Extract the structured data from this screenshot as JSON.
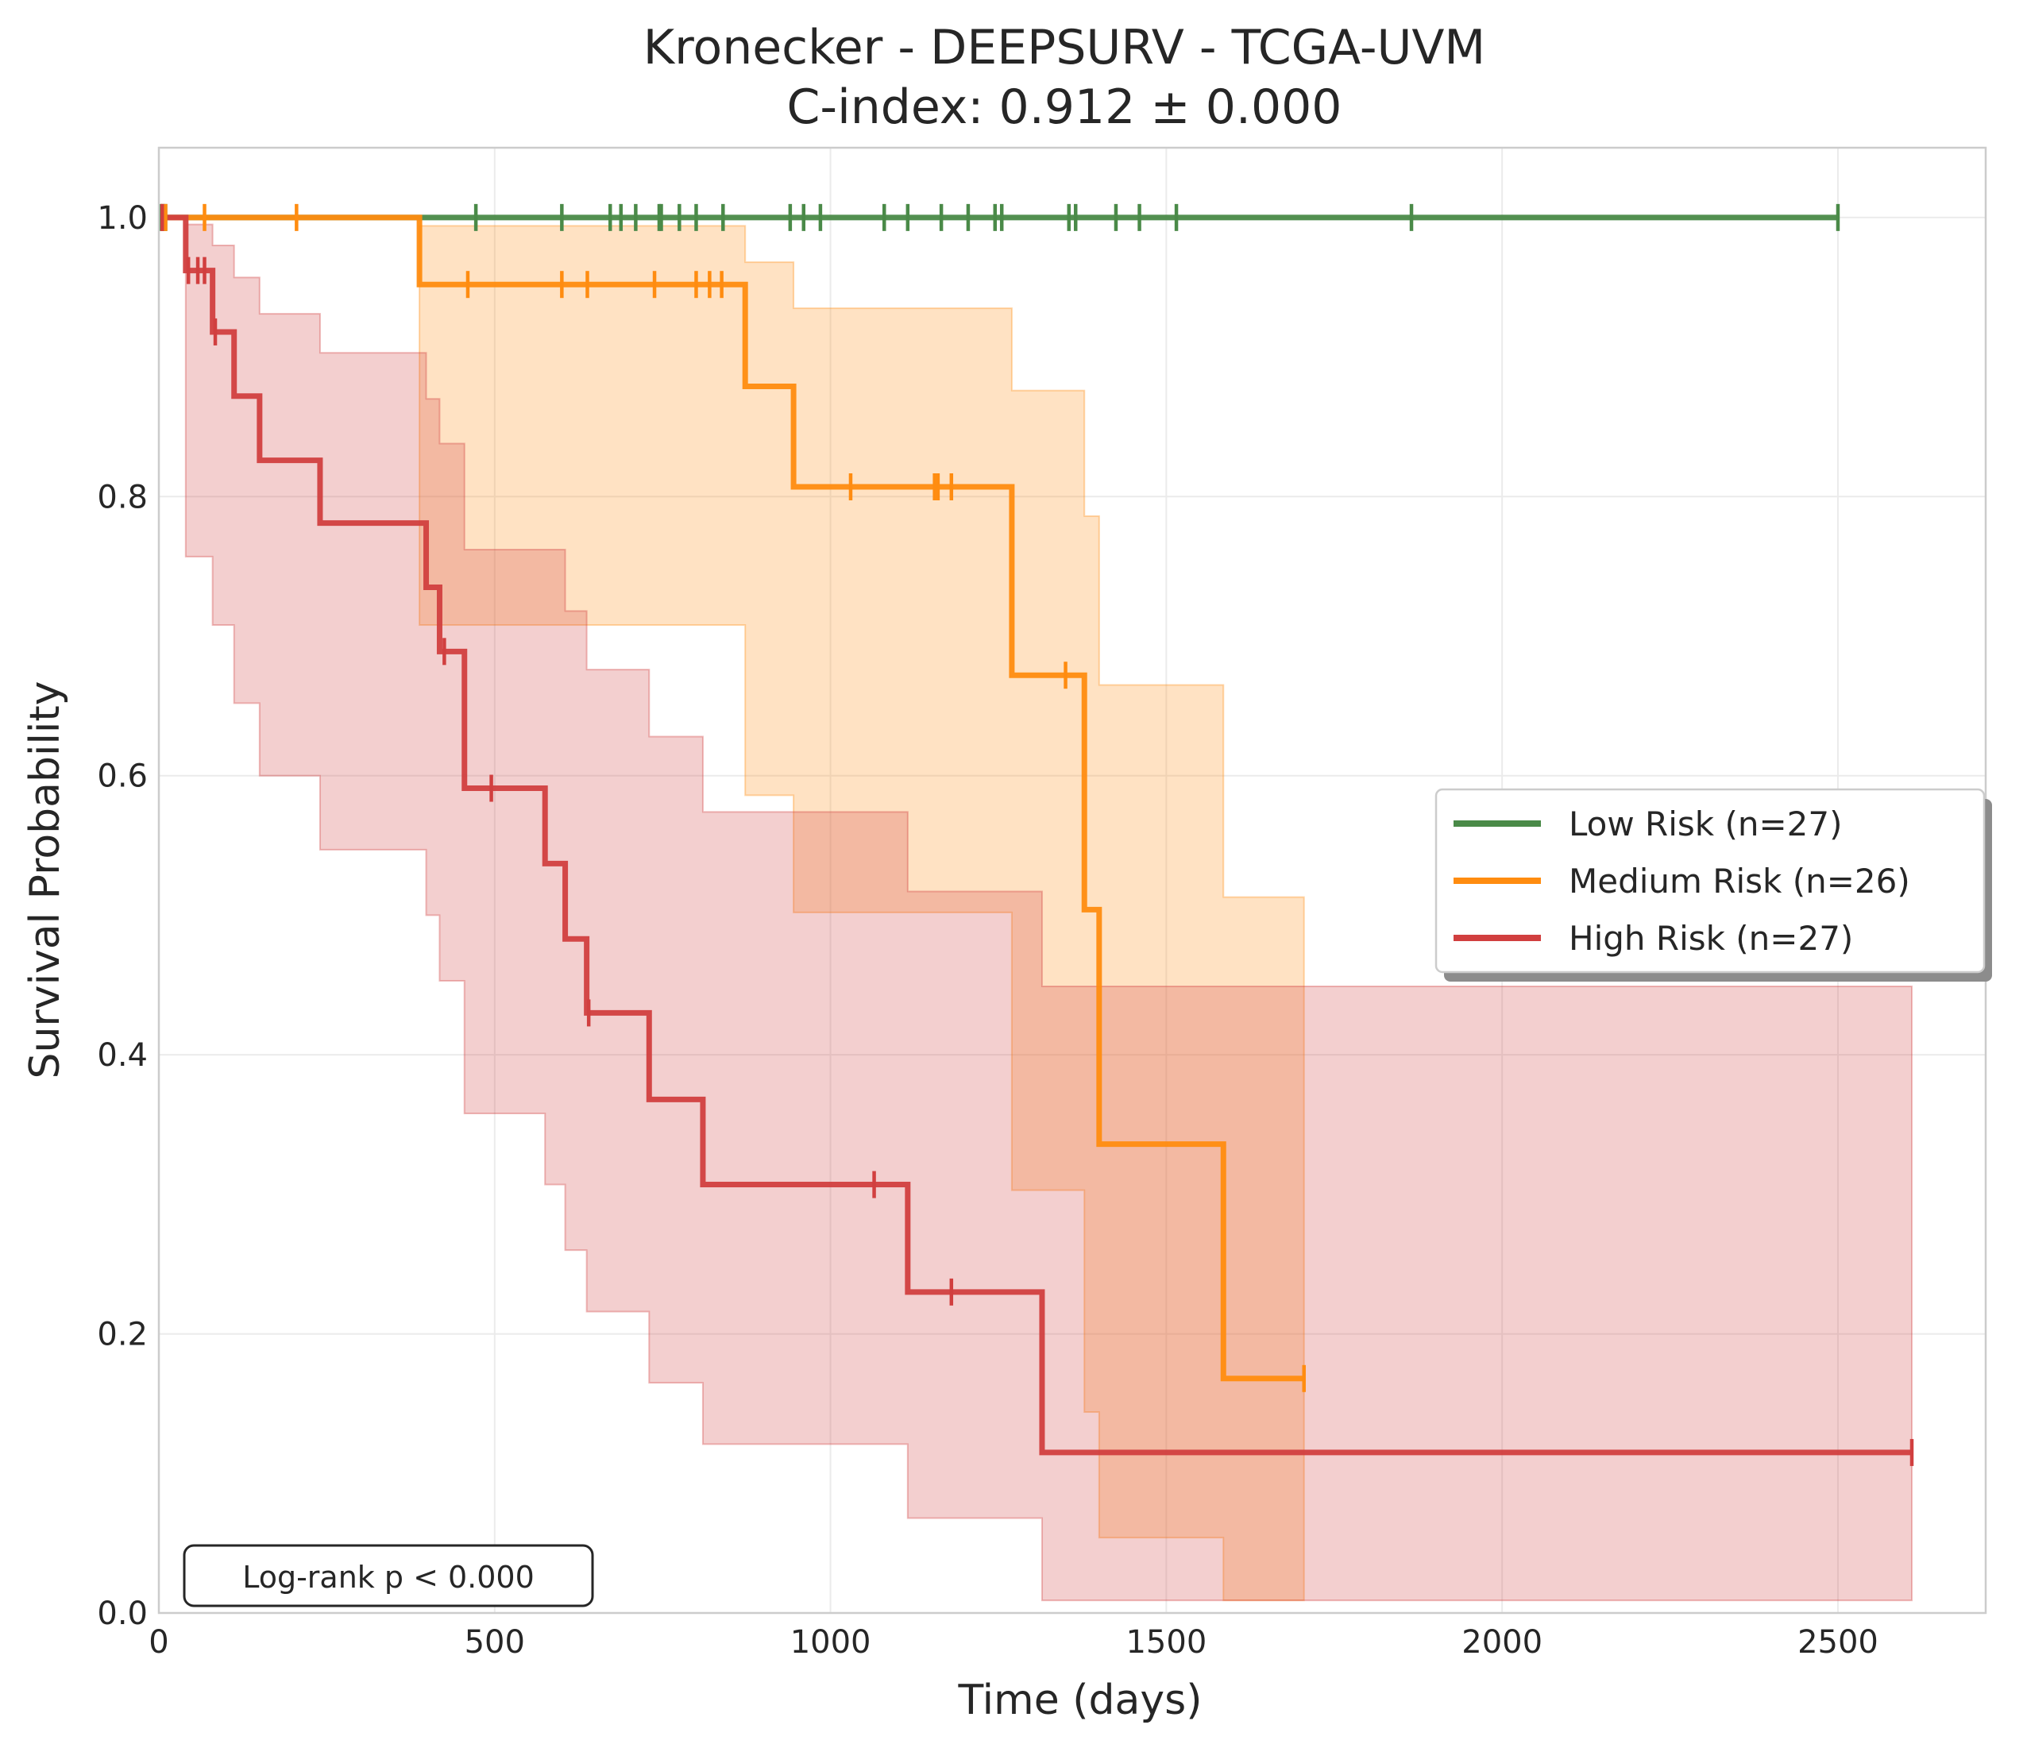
{
  "chart_data": {
    "type": "line",
    "title_line1": "Kronecker - DEEPSURV - TCGA-UVM",
    "title_line2": "C-index: 0.912 ± 0.000",
    "xlabel": "Time (days)",
    "ylabel": "Survival Probability",
    "xlim": [
      0,
      2720
    ],
    "ylim": [
      0,
      1.05
    ],
    "x_ticks": [
      0,
      500,
      1000,
      1500,
      2000,
      2500
    ],
    "x_tick_labels": [
      "0",
      "500",
      "1000",
      "1500",
      "2000",
      "2500"
    ],
    "y_ticks": [
      0,
      0.2,
      0.4,
      0.6,
      0.8,
      1.0
    ],
    "y_tick_labels": [
      "0.0",
      "0.2",
      "0.4",
      "0.6",
      "0.8",
      "1.0"
    ],
    "grid": true,
    "legend_position": "center-right",
    "annotation": "Log-rank p < 0.000",
    "series": [
      {
        "name": "Low Risk (n=27)",
        "color": "#4a8a48",
        "times": [
          0,
          2500
        ],
        "survival": [
          1.0,
          1.0
        ],
        "ci": [],
        "censor_times": [
          2,
          6,
          10,
          472,
          600,
          672,
          688,
          710,
          745,
          748,
          775,
          800,
          840,
          940,
          960,
          985,
          1080,
          1115,
          1165,
          1205,
          1245,
          1255,
          1355,
          1365,
          1425,
          1460,
          1515,
          1865,
          2500
        ]
      },
      {
        "name": "Medium Risk (n=26)",
        "color": "#ff8c10",
        "times": [
          0,
          388,
          873,
          945,
          1270,
          1378,
          1400,
          1585,
          1705
        ],
        "survival": [
          1.0,
          0.952,
          0.879,
          0.807,
          0.672,
          0.504,
          0.336,
          0.168,
          0.168
        ],
        "ci": [
          {
            "t": 388,
            "lo": 0.708,
            "hi": 0.994
          },
          {
            "t": 873,
            "lo": 0.586,
            "hi": 0.968
          },
          {
            "t": 945,
            "lo": 0.502,
            "hi": 0.935
          },
          {
            "t": 1270,
            "lo": 0.303,
            "hi": 0.876
          },
          {
            "t": 1378,
            "lo": 0.144,
            "hi": 0.786
          },
          {
            "t": 1400,
            "lo": 0.054,
            "hi": 0.665
          },
          {
            "t": 1585,
            "lo": 0.009,
            "hi": 0.513
          },
          {
            "t": 1705,
            "lo": 0.009,
            "hi": 0.513
          }
        ],
        "censor_times": [
          5,
          10,
          68,
          205,
          460,
          600,
          638,
          738,
          800,
          820,
          838,
          1030,
          1155,
          1160,
          1180,
          1350,
          1705
        ]
      },
      {
        "name": "High Risk (n=27)",
        "color": "#d13f3f",
        "times": [
          0,
          40,
          80,
          112,
          150,
          240,
          398,
          418,
          455,
          575,
          605,
          637,
          730,
          810,
          1115,
          1315,
          2610
        ],
        "survival": [
          1.0,
          0.962,
          0.918,
          0.872,
          0.826,
          0.781,
          0.735,
          0.689,
          0.591,
          0.537,
          0.483,
          0.43,
          0.368,
          0.307,
          0.23,
          0.115,
          0.115
        ],
        "ci": [
          {
            "t": 40,
            "lo": 0.757,
            "hi": 0.995
          },
          {
            "t": 80,
            "lo": 0.708,
            "hi": 0.98
          },
          {
            "t": 112,
            "lo": 0.652,
            "hi": 0.957
          },
          {
            "t": 150,
            "lo": 0.6,
            "hi": 0.931
          },
          {
            "t": 240,
            "lo": 0.547,
            "hi": 0.903
          },
          {
            "t": 398,
            "lo": 0.5,
            "hi": 0.87
          },
          {
            "t": 418,
            "lo": 0.453,
            "hi": 0.838
          },
          {
            "t": 455,
            "lo": 0.358,
            "hi": 0.762
          },
          {
            "t": 575,
            "lo": 0.307,
            "hi": 0.762
          },
          {
            "t": 605,
            "lo": 0.26,
            "hi": 0.718
          },
          {
            "t": 637,
            "lo": 0.216,
            "hi": 0.676
          },
          {
            "t": 730,
            "lo": 0.165,
            "hi": 0.628
          },
          {
            "t": 810,
            "lo": 0.121,
            "hi": 0.574
          },
          {
            "t": 1115,
            "lo": 0.068,
            "hi": 0.517
          },
          {
            "t": 1315,
            "lo": 0.009,
            "hi": 0.449
          },
          {
            "t": 2610,
            "lo": 0.009,
            "hi": 0.364
          }
        ],
        "censor_times": [
          5,
          44,
          58,
          68,
          84,
          425,
          495,
          640,
          1065,
          1180,
          2610
        ]
      }
    ]
  }
}
